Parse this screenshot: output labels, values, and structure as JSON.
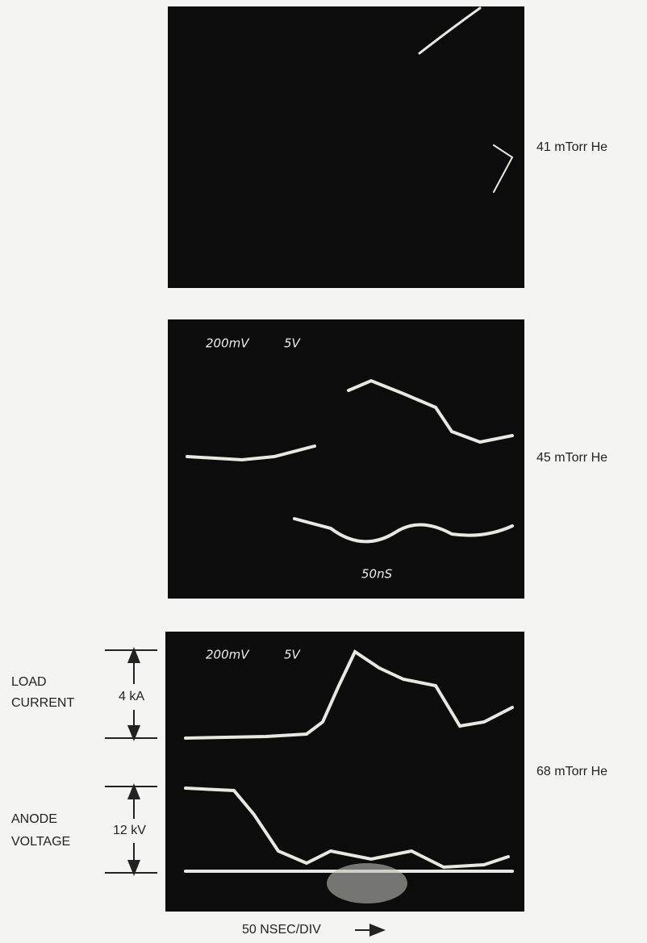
{
  "panels": [
    {
      "pressure": "41 mTorr He"
    },
    {
      "pressure": "45 mTorr He",
      "scope_texts": [
        "200mV",
        "5V",
        "50nS"
      ]
    },
    {
      "pressure": "68 mTorr He",
      "scope_texts": [
        "200mV",
        "5V"
      ]
    }
  ],
  "annotations": {
    "load_current": {
      "lines": [
        "LOAD",
        "CURRENT"
      ],
      "scale": "4 kA"
    },
    "anode_voltage": {
      "lines": [
        "ANODE",
        "VOLTAGE"
      ],
      "scale": "12 kV"
    },
    "time_base": "50 NSEC/DIV"
  }
}
